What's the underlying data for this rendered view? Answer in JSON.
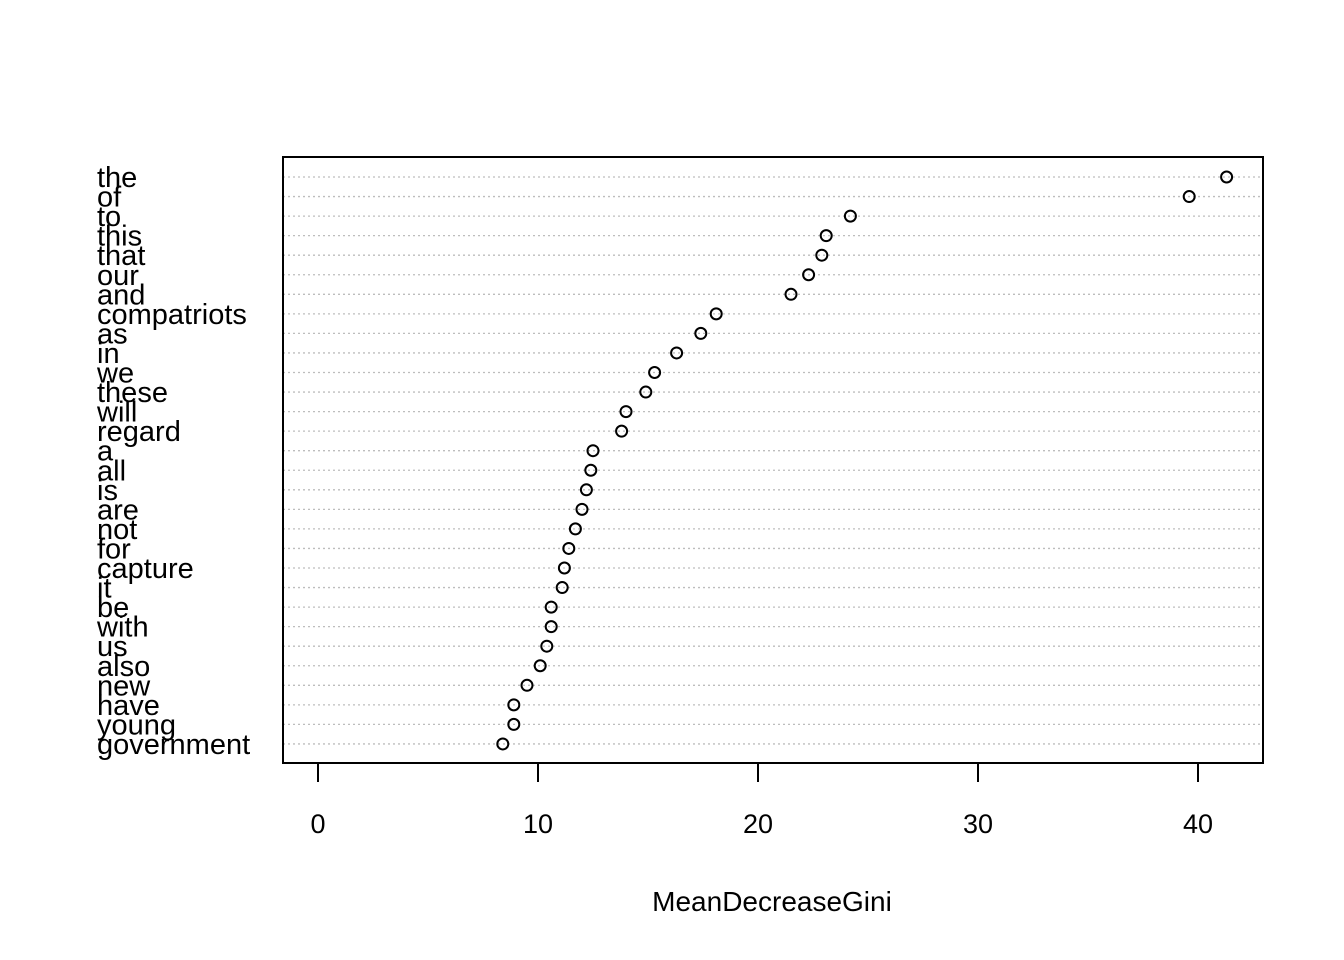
{
  "chart_data": {
    "type": "scatter",
    "xlabel": "MeanDecreaseGini",
    "xlim": [
      0,
      42
    ],
    "xticks": [
      "0",
      "10",
      "20",
      "30",
      "40"
    ],
    "grid": "horizontal dotted",
    "marker": "open circle",
    "categories": [
      "the",
      "of",
      "to",
      "this",
      "that",
      "our",
      "and",
      "compatriots",
      "as",
      "in",
      "we",
      "these",
      "will",
      "regard",
      "a",
      "all",
      "is",
      "are",
      "not",
      "for",
      "capture",
      "it",
      "be",
      "with",
      "us",
      "also",
      "new",
      "have",
      "young",
      "government"
    ],
    "values": [
      41.3,
      39.6,
      24.2,
      23.1,
      22.9,
      22.3,
      21.5,
      18.1,
      17.4,
      16.3,
      15.3,
      14.9,
      14.0,
      13.8,
      12.5,
      12.4,
      12.2,
      12.0,
      11.7,
      11.4,
      11.2,
      11.1,
      10.6,
      10.6,
      10.4,
      10.1,
      9.5,
      8.9,
      8.9,
      8.4
    ]
  }
}
